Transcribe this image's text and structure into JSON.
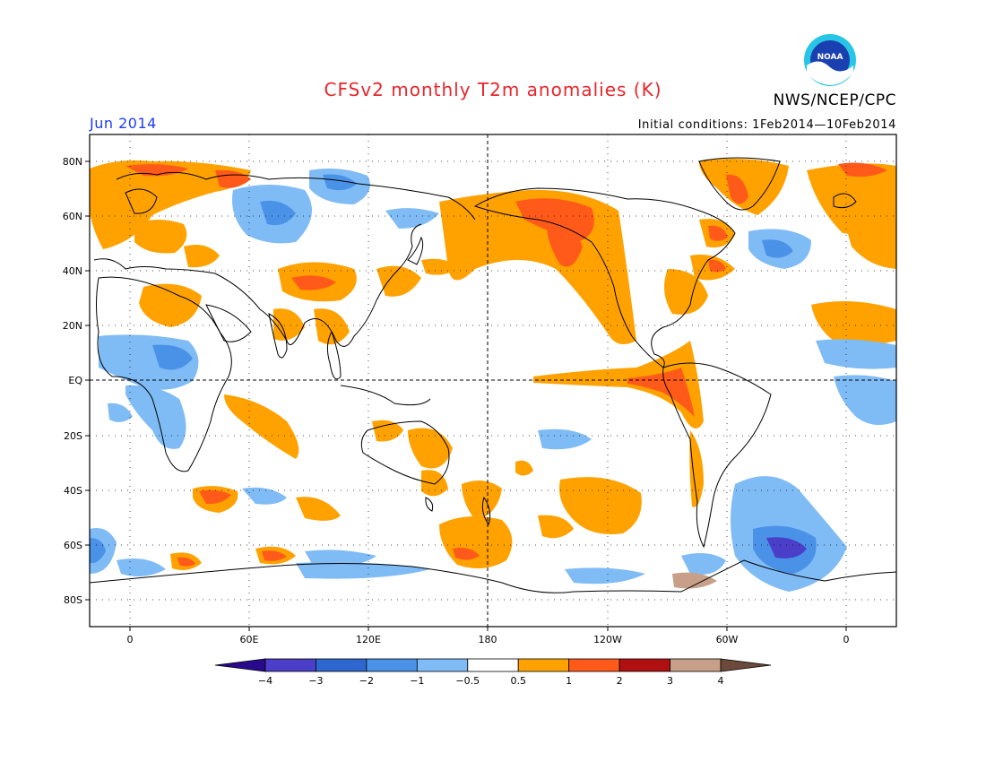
{
  "title": "CFSv2 monthly T2m anomalies (K)",
  "agency": "NWS/NCEP/CPC",
  "logo_text": "NOAA",
  "month": "Jun 2014",
  "initial_conditions": "Initial conditions: 1Feb2014—10Feb2014",
  "lat_labels": [
    "80N",
    "60N",
    "40N",
    "20N",
    "EQ",
    "20S",
    "40S",
    "60S",
    "80S"
  ],
  "lon_labels": [
    "0",
    "60E",
    "120E",
    "180",
    "120W",
    "60W",
    "0"
  ],
  "colorbar": {
    "ticks": [
      "−4",
      "−3",
      "−2",
      "−1",
      "−0.5",
      "0.5",
      "1",
      "2",
      "3",
      "4"
    ],
    "colors": [
      "#2a0a8c",
      "#4b3ec9",
      "#2e67cf",
      "#4a92e8",
      "#7fbbf5",
      "#ffffff",
      "#ffa200",
      "#ff5a1a",
      "#b01010",
      "#c8a08a",
      "#6b4a3c"
    ]
  },
  "palette": {
    "warm1": "#ffa200",
    "warm2": "#ff5a1a",
    "warm3": "#b01010",
    "cool1": "#7fbbf5",
    "cool2": "#4a92e8",
    "cool3": "#2e67cf",
    "cool4": "#4b3ec9"
  }
}
